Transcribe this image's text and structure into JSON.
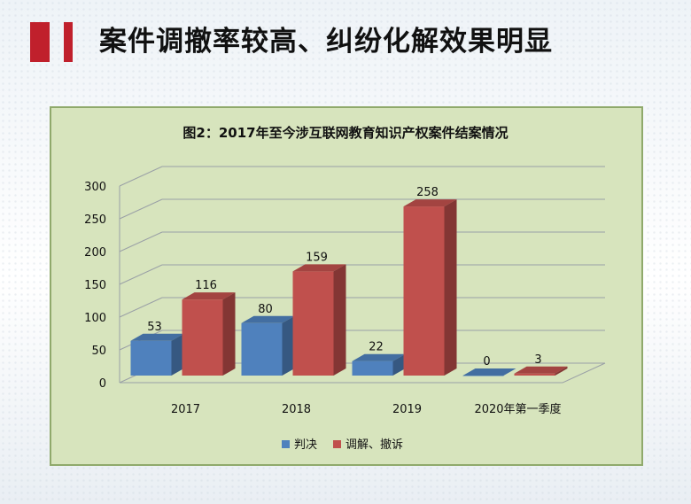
{
  "slide": {
    "title": "案件调撤率较高、纠纷化解效果明显"
  },
  "chart_data": {
    "type": "bar",
    "title": "图2：2017年至今涉互联网教育知识产权案件结案情况",
    "categories": [
      "2017",
      "2018",
      "2019",
      "2020年第一季度"
    ],
    "series": [
      {
        "name": "判决",
        "values": [
          53,
          80,
          22,
          0
        ],
        "color": "#4f81bd"
      },
      {
        "name": "调解、撤诉",
        "values": [
          116,
          159,
          258,
          3
        ],
        "color": "#c0504d"
      }
    ],
    "ylim": [
      0,
      300
    ],
    "yticks": [
      0,
      50,
      100,
      150,
      200,
      250,
      300
    ],
    "grid": true,
    "legend": "bottom"
  },
  "colors": {
    "accent": "#c0202c",
    "chart_bg": "#d7e4bd"
  }
}
